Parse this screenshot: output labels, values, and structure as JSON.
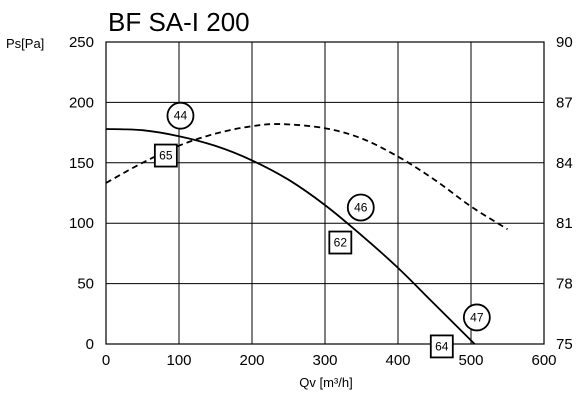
{
  "chart_data": {
    "type": "line",
    "title": "BF SA-I 200",
    "ylabel": "Ps[Pa]",
    "xlabel": "Qv [m³/h]",
    "xlim": [
      0,
      600
    ],
    "ylim": [
      0,
      250
    ],
    "y2lim": [
      75,
      90
    ],
    "xticks": [
      "0",
      "100",
      "200",
      "300",
      "400",
      "500",
      "600"
    ],
    "yticks": [
      "0",
      "50",
      "100",
      "150",
      "200",
      "250"
    ],
    "y2ticks": [
      "75",
      "78",
      "81",
      "84",
      "87",
      "90"
    ],
    "grid": true,
    "series": [
      {
        "style": "solid",
        "axis": "left",
        "x": [
          0,
          50,
          100,
          150,
          200,
          250,
          300,
          350,
          400,
          450,
          505
        ],
        "y": [
          178,
          177,
          172,
          164,
          152,
          136,
          115,
          90,
          63,
          33,
          0
        ]
      },
      {
        "style": "dashed",
        "axis": "right",
        "x": [
          0,
          50,
          100,
          150,
          200,
          240,
          300,
          350,
          400,
          450,
          500,
          550
        ],
        "y": [
          83.0,
          84.0,
          84.85,
          85.45,
          85.82,
          85.92,
          85.72,
          85.21,
          84.31,
          83.16,
          81.83,
          80.7
        ]
      }
    ],
    "annotations": [
      {
        "shape": "circle",
        "label": "44",
        "x": 102,
        "y": 189
      },
      {
        "shape": "square",
        "label": "65",
        "x": 82,
        "y": 156
      },
      {
        "shape": "circle",
        "label": "46",
        "x": 349,
        "y": 113
      },
      {
        "shape": "square",
        "label": "62",
        "x": 321,
        "y": 84
      },
      {
        "shape": "circle",
        "label": "47",
        "x": 508,
        "y": 22
      },
      {
        "shape": "square",
        "label": "64",
        "x": 460,
        "y": -2
      }
    ]
  }
}
